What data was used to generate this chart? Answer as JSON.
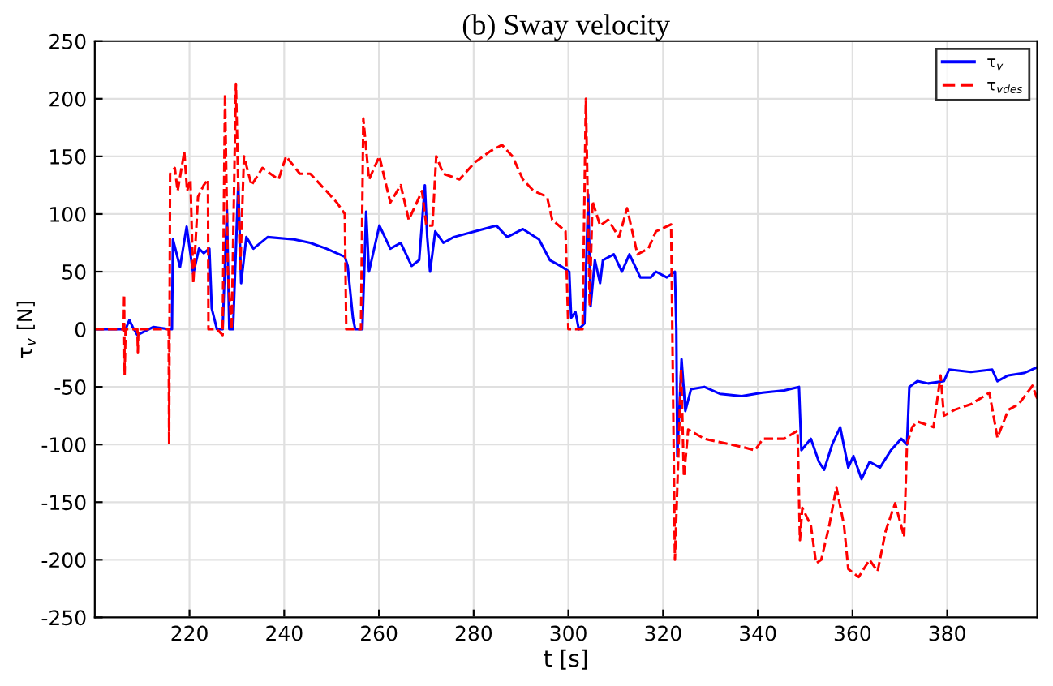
{
  "chart_data": {
    "type": "line",
    "title": "(b) Sway velocity",
    "xlabel": "t [s]",
    "ylabel": "τ$_{v}$ [N]",
    "xlim": [
      200,
      399
    ],
    "xticks": [
      220,
      240,
      260,
      280,
      300,
      320,
      340,
      360,
      380
    ],
    "ylim": [
      -250,
      250
    ],
    "yticks": [
      -250,
      -200,
      -150,
      -100,
      -50,
      0,
      50,
      100,
      150,
      200,
      250
    ],
    "grid": true,
    "legend": "top right",
    "marker": "none",
    "series": [
      {
        "name": "τ$_{v}$",
        "color": "#0000ff",
        "line_style": "solid",
        "x": [
          200,
          206.5,
          207.3,
          208,
          209,
          212.4,
          215.7,
          216.3,
          216.5,
          218,
          219.4,
          220.8,
          222,
          223,
          224.2,
          224.7,
          225.8,
          227,
          227.9,
          228.4,
          229.2,
          230.3,
          230.9,
          232,
          233.5,
          236.5,
          242.1,
          245.5,
          248.9,
          252.8,
          253.4,
          254.5,
          255,
          256.5,
          257.3,
          257.9,
          260.1,
          262.4,
          264.6,
          266.9,
          268.5,
          269.7,
          270.2,
          270.8,
          271.9,
          273.6,
          275.8,
          280.3,
          284.8,
          287.1,
          290.4,
          293.8,
          296.1,
          298.3,
          300.2,
          300.6,
          301.5,
          302.2,
          303.4,
          304.2,
          304.7,
          305.6,
          306.7,
          307.3,
          309.6,
          311.3,
          312.9,
          315.2,
          317.4,
          318.5,
          320.8,
          322.5,
          322.8,
          323,
          323.9,
          324.7,
          325.9,
          328.7,
          332,
          336.6,
          341,
          345.6,
          348.7,
          349.2,
          351.2,
          352.9,
          354,
          355.7,
          357.4,
          359.1,
          360.2,
          361.9,
          363.6,
          365.8,
          368.1,
          370.3,
          371.5,
          372,
          373.7,
          376,
          379.3,
          380.4,
          385,
          389.5,
          390.6,
          392.9,
          396.2,
          399
        ],
        "values": [
          0,
          0,
          8,
          2,
          -5,
          2,
          0,
          0,
          78,
          54,
          89,
          48,
          70,
          66,
          70,
          18,
          0,
          0,
          104,
          0,
          0,
          127,
          40,
          80,
          70,
          80,
          78,
          75,
          70,
          63,
          55,
          10,
          0,
          0,
          102,
          50,
          90,
          70,
          75,
          55,
          60,
          125,
          80,
          50,
          85,
          75,
          80,
          85,
          90,
          80,
          87,
          78,
          60,
          55,
          50,
          10,
          15,
          0,
          5,
          117,
          20,
          60,
          40,
          60,
          65,
          50,
          65,
          45,
          45,
          50,
          45,
          50,
          0,
          -110,
          -26,
          -71,
          -52,
          -50,
          -56,
          -58,
          -55,
          -53,
          -50,
          -105,
          -95,
          -115,
          -122,
          -100,
          -85,
          -120,
          -110,
          -130,
          -115,
          -120,
          -105,
          -95,
          -100,
          -50,
          -45,
          -47,
          -45,
          -35,
          -37,
          -35,
          -45,
          -40,
          -38,
          -33
        ]
      },
      {
        "name": "τ$_{vdes}$",
        "color": "#ff0000",
        "line_style": "dashed",
        "x": [
          200,
          206.1,
          206.2,
          206.3,
          206.5,
          209,
          209.1,
          209.2,
          215.6,
          215.7,
          215.9,
          216.9,
          217.5,
          218.9,
          219.5,
          220.2,
          220.8,
          221.8,
          223,
          223.9,
          224,
          225.8,
          227,
          227.5,
          228.1,
          228.9,
          229.8,
          230.7,
          231.5,
          233.1,
          235.4,
          238.8,
          240.4,
          243.3,
          245.5,
          248.9,
          251.1,
          252.8,
          253.1,
          256.2,
          256.7,
          257.9,
          260.1,
          262.4,
          264.6,
          266.3,
          268,
          269.1,
          270,
          271.3,
          272.1,
          273.6,
          277,
          280.3,
          283.7,
          286,
          288.2,
          290.4,
          292.7,
          295.5,
          296.6,
          299.4,
          300,
          303,
          303.7,
          304.5,
          305.1,
          306.7,
          308.4,
          310.7,
          312.4,
          314.6,
          316.9,
          318.5,
          321.7,
          322.5,
          323.3,
          323.8,
          324.4,
          325.3,
          328.7,
          332,
          336.6,
          339.4,
          341.1,
          345.6,
          348.4,
          348.9,
          349.4,
          351.2,
          352.3,
          353.4,
          355.1,
          356.6,
          358.2,
          359.1,
          361.3,
          363.6,
          365.3,
          367,
          369,
          370.9,
          371.5,
          372.6,
          373.7,
          377.1,
          378.6,
          379.3,
          381.5,
          385,
          387,
          388.9,
          390.6,
          392.9,
          395.1,
          398,
          399
        ],
        "values": [
          0,
          0,
          30,
          -40,
          0,
          0,
          -20,
          0,
          0,
          -100,
          135,
          140,
          120,
          154,
          120,
          130,
          40,
          115,
          125,
          130,
          0,
          0,
          -5,
          204,
          50,
          0,
          213,
          50,
          150,
          125,
          140,
          130,
          150,
          135,
          135,
          120,
          110,
          100,
          0,
          0,
          183,
          130,
          150,
          110,
          125,
          95,
          110,
          120,
          90,
          90,
          150,
          135,
          130,
          145,
          155,
          160,
          150,
          130,
          120,
          115,
          95,
          85,
          0,
          0,
          200,
          20,
          111,
          90,
          95,
          80,
          105,
          65,
          70,
          85,
          91,
          -200,
          -100,
          -35,
          -128,
          -87,
          -95,
          -98,
          -102,
          -105,
          -95,
          -95,
          -88,
          -183,
          -155,
          -170,
          -203,
          -200,
          -170,
          -137,
          -170,
          -208,
          -215,
          -200,
          -210,
          -175,
          -151,
          -180,
          -100,
          -85,
          -80,
          -85,
          -40,
          -75,
          -70,
          -65,
          -60,
          -55,
          -94,
          -70,
          -65,
          -49,
          -60
        ]
      }
    ]
  }
}
